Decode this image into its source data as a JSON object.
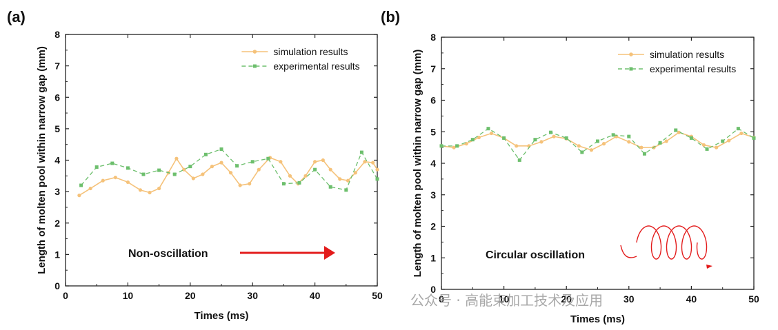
{
  "chart_data": [
    {
      "panel_label": "(a)",
      "type": "line",
      "title": "",
      "xlabel": "Times (ms)",
      "ylabel": "Length of molten pool within narrow gap (mm)",
      "xlim": [
        0,
        50
      ],
      "ylim": [
        0,
        8
      ],
      "xticks": [
        0,
        10,
        20,
        30,
        40,
        50
      ],
      "yticks": [
        0,
        1,
        2,
        3,
        4,
        5,
        6,
        7,
        8
      ],
      "grid": false,
      "legend_position": "top-right",
      "annotation": "Non-oscillation",
      "series": [
        {
          "name": "simulation results",
          "color": "#F5C27A",
          "style": "solid-dot",
          "x": [
            2.2,
            4,
            6,
            8,
            10,
            12,
            13.5,
            15,
            16.5,
            17.8,
            19,
            20.5,
            22,
            23.5,
            25,
            26.5,
            28,
            29.5,
            31,
            32.8,
            34.5,
            36,
            37.3,
            38.5,
            40,
            41.3,
            42.5,
            44,
            45.3,
            46.5,
            48,
            49.3,
            50
          ],
          "y": [
            2.88,
            3.1,
            3.35,
            3.45,
            3.3,
            3.05,
            2.97,
            3.1,
            3.6,
            4.05,
            3.7,
            3.42,
            3.55,
            3.8,
            3.92,
            3.6,
            3.2,
            3.25,
            3.7,
            4.08,
            3.95,
            3.5,
            3.25,
            3.5,
            3.95,
            4.0,
            3.7,
            3.4,
            3.35,
            3.6,
            3.95,
            3.92,
            3.7
          ]
        },
        {
          "name": "experimental results",
          "color": "#6DBF6D",
          "style": "dashed-square",
          "x": [
            2.5,
            5,
            7.5,
            10,
            12.5,
            15,
            17.5,
            20,
            22.5,
            25,
            27.5,
            30,
            32.5,
            35,
            37.5,
            40,
            42.5,
            45,
            47.5,
            50
          ],
          "y": [
            3.2,
            3.78,
            3.9,
            3.75,
            3.55,
            3.68,
            3.55,
            3.8,
            4.18,
            4.35,
            3.82,
            3.95,
            4.05,
            3.25,
            3.28,
            3.7,
            3.15,
            3.05,
            4.25,
            3.4
          ]
        }
      ]
    },
    {
      "panel_label": "(b)",
      "type": "line",
      "title": "",
      "xlabel": "Times (ms)",
      "ylabel": "Length of molten pool within narrow gap (mm)",
      "xlim": [
        0,
        50
      ],
      "ylim": [
        0,
        8
      ],
      "xticks": [
        0,
        10,
        20,
        30,
        40,
        50
      ],
      "yticks": [
        0,
        1,
        2,
        3,
        4,
        5,
        6,
        7,
        8
      ],
      "grid": false,
      "legend_position": "top-right",
      "annotation": "Circular oscillation",
      "series": [
        {
          "name": "simulation results",
          "color": "#F5C27A",
          "style": "solid-dot",
          "x": [
            0,
            2,
            4,
            6,
            8,
            10,
            12,
            14,
            16,
            18,
            20,
            22,
            24,
            26,
            28,
            30,
            32,
            34,
            36,
            38,
            40,
            42,
            44,
            46,
            48,
            50
          ],
          "y": [
            4.55,
            4.5,
            4.62,
            4.82,
            4.95,
            4.8,
            4.55,
            4.55,
            4.68,
            4.85,
            4.78,
            4.55,
            4.42,
            4.62,
            4.85,
            4.68,
            4.5,
            4.5,
            4.7,
            4.98,
            4.85,
            4.58,
            4.5,
            4.72,
            4.95,
            4.82
          ]
        },
        {
          "name": "experimental results",
          "color": "#6DBF6D",
          "style": "dashed-square",
          "x": [
            0,
            2.5,
            5,
            7.5,
            10,
            12.5,
            15,
            17.5,
            20,
            22.5,
            25,
            27.5,
            30,
            32.5,
            35,
            37.5,
            40,
            42.5,
            45,
            47.5,
            50
          ],
          "y": [
            4.55,
            4.55,
            4.75,
            5.1,
            4.8,
            4.1,
            4.75,
            4.98,
            4.8,
            4.35,
            4.7,
            4.9,
            4.85,
            4.3,
            4.65,
            5.05,
            4.8,
            4.45,
            4.7,
            5.1,
            4.8
          ]
        }
      ]
    }
  ],
  "watermark": "公众号 · 高能束加工技术及应用"
}
